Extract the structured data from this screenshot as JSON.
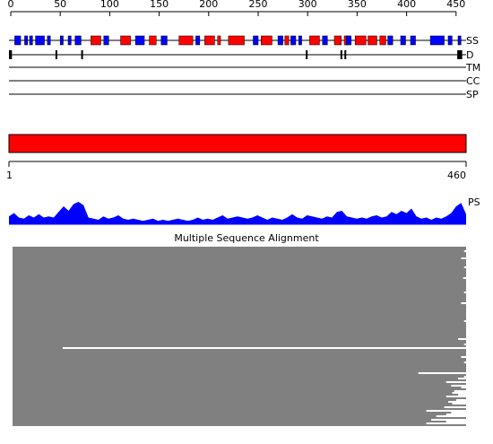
{
  "ruler": {
    "ticks": [
      0,
      50,
      100,
      150,
      200,
      250,
      300,
      350,
      400,
      450
    ]
  },
  "tracks": [
    {
      "label": "SS"
    },
    {
      "label": "D"
    },
    {
      "label": "TM"
    },
    {
      "label": "CC"
    },
    {
      "label": "SP"
    }
  ],
  "ss": {
    "helix_color": "#ff0000",
    "strand_color": "#0000ff",
    "helices": [
      [
        81,
        91
      ],
      [
        111,
        121
      ],
      [
        140,
        147
      ],
      [
        170,
        184
      ],
      [
        196,
        206
      ],
      [
        209,
        212
      ],
      [
        220,
        236
      ],
      [
        253,
        264
      ],
      [
        277,
        281
      ],
      [
        302,
        312
      ],
      [
        327,
        334
      ],
      [
        337,
        341
      ],
      [
        348,
        359
      ],
      [
        361,
        370
      ],
      [
        373,
        379
      ]
    ],
    "strands": [
      [
        4,
        10
      ],
      [
        14,
        17
      ],
      [
        19,
        22
      ],
      [
        25,
        34
      ],
      [
        37,
        40
      ],
      [
        50,
        53
      ],
      [
        58,
        61
      ],
      [
        65,
        71
      ],
      [
        94,
        99
      ],
      [
        126,
        135
      ],
      [
        152,
        158
      ],
      [
        187,
        191
      ],
      [
        245,
        250
      ],
      [
        270,
        275
      ],
      [
        283,
        288
      ],
      [
        291,
        294
      ],
      [
        315,
        320
      ],
      [
        339,
        344
      ],
      [
        381,
        386
      ],
      [
        394,
        399
      ],
      [
        404,
        409
      ],
      [
        424,
        438
      ],
      [
        442,
        446
      ],
      [
        452,
        455
      ]
    ]
  },
  "disorder": [
    [
      0,
      3
    ],
    [
      47,
      48
    ],
    [
      73,
      74
    ],
    [
      300,
      301
    ],
    [
      335,
      336
    ],
    [
      339,
      340
    ],
    [
      453,
      458
    ]
  ],
  "sequence": {
    "start": 1,
    "end": 460,
    "color": "#ff0000"
  },
  "profile": {
    "label": "PS",
    "color": "#0000ff",
    "values": [
      0.35,
      0.5,
      0.3,
      0.25,
      0.4,
      0.3,
      0.45,
      0.3,
      0.35,
      0.3,
      0.55,
      0.8,
      0.6,
      0.9,
      1.0,
      0.85,
      0.3,
      0.25,
      0.2,
      0.35,
      0.25,
      0.3,
      0.4,
      0.25,
      0.2,
      0.25,
      0.2,
      0.15,
      0.2,
      0.25,
      0.15,
      0.2,
      0.15,
      0.2,
      0.25,
      0.2,
      0.15,
      0.2,
      0.3,
      0.2,
      0.25,
      0.2,
      0.3,
      0.4,
      0.25,
      0.3,
      0.35,
      0.3,
      0.25,
      0.3,
      0.4,
      0.3,
      0.2,
      0.3,
      0.25,
      0.2,
      0.3,
      0.45,
      0.3,
      0.25,
      0.4,
      0.35,
      0.3,
      0.25,
      0.35,
      0.3,
      0.55,
      0.6,
      0.35,
      0.3,
      0.25,
      0.3,
      0.25,
      0.35,
      0.4,
      0.3,
      0.35,
      0.55,
      0.45,
      0.6,
      0.5,
      0.7,
      0.35,
      0.25,
      0.3,
      0.2,
      0.3,
      0.25,
      0.35,
      0.5,
      0.8,
      0.95,
      0.45
    ]
  },
  "msa": {
    "title": "Multiple Sequence Alignment",
    "ends": [
      460,
      460,
      458,
      460,
      460,
      460,
      455,
      460,
      460,
      460,
      460,
      458,
      460,
      460,
      460,
      460,
      460,
      457,
      460,
      460,
      460,
      460,
      460,
      460,
      460,
      458,
      460,
      460,
      460,
      460,
      460,
      455,
      460,
      460,
      460,
      460,
      460,
      460,
      460,
      460,
      460,
      458,
      460,
      460,
      460,
      460,
      460,
      460,
      460,
      460,
      460,
      452,
      460,
      460,
      458,
      460,
      55,
      460,
      460,
      460,
      460,
      455,
      460,
      460,
      458,
      460,
      460,
      460,
      460,
      460,
      412,
      460,
      458,
      452,
      460,
      440,
      460,
      445,
      455,
      460,
      448,
      446,
      452,
      440,
      460,
      450,
      442,
      446,
      460,
      438,
      460,
      420,
      445,
      440,
      430,
      460,
      425,
      440,
      420,
      460
    ]
  }
}
